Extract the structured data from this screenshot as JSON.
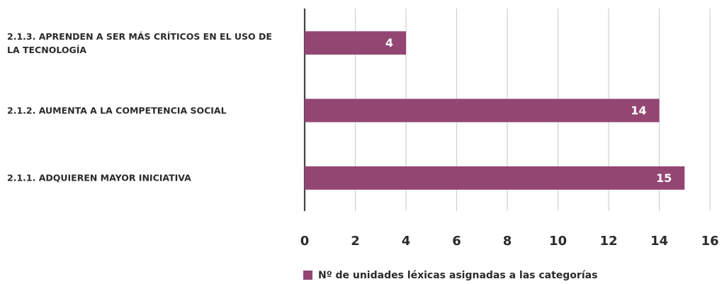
{
  "chart_data": {
    "type": "bar",
    "orientation": "horizontal",
    "categories": [
      "2.1.3. APRENDEN A SER MÁS CRÍTICOS EN EL USO DE LA TECNOLOGÍA",
      "2.1.2. AUMENTA A LA COMPETENCIA SOCIAL",
      "2.1.1. ADQUIEREN MAYOR INICIATIVA"
    ],
    "series": [
      {
        "name": "Nº de unidades léxicas asignadas a las categorías",
        "color": "#944673",
        "values": [
          4,
          14,
          15
        ]
      }
    ],
    "xlim": [
      0,
      16
    ],
    "xticks": [
      0,
      2,
      4,
      6,
      8,
      10,
      12,
      14,
      16
    ],
    "grid": true,
    "legend": "bottom"
  }
}
